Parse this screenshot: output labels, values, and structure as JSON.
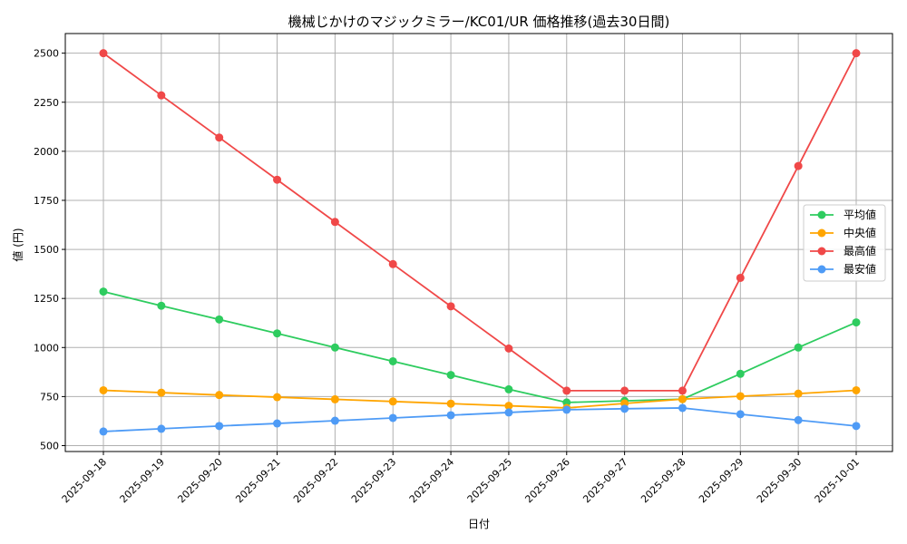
{
  "chart_data": {
    "type": "line",
    "title": "機械じかけのマジックミラー/KC01/UR 価格推移(過去30日間)",
    "xlabel": "日付",
    "ylabel": "値 (円)",
    "categories": [
      "2025-09-18",
      "2025-09-19",
      "2025-09-20",
      "2025-09-21",
      "2025-09-22",
      "2025-09-23",
      "2025-09-24",
      "2025-09-25",
      "2025-09-26",
      "2025-09-27",
      "2025-09-28",
      "2025-09-29",
      "2025-09-30",
      "2025-10-01"
    ],
    "ylim": [
      470,
      2600
    ],
    "yticks": [
      500,
      750,
      1000,
      1250,
      1500,
      1750,
      2000,
      2250,
      2500
    ],
    "grid": true,
    "legend_position": "right",
    "series": [
      {
        "name": "平均値",
        "color": "#2ecc5f",
        "values": [
          1285,
          1213,
          1143,
          1072,
          1000,
          930,
          860,
          787,
          720,
          728,
          737,
          866,
          1000,
          1128
        ]
      },
      {
        "name": "中央値",
        "color": "#ffa500",
        "values": [
          782,
          770,
          758,
          747,
          736,
          725,
          714,
          703,
          692,
          715,
          737,
          752,
          765,
          782
        ]
      },
      {
        "name": "最高値",
        "color": "#f04848",
        "values": [
          2500,
          2285,
          2070,
          1855,
          1640,
          1425,
          1210,
          995,
          780,
          780,
          780,
          1355,
          1925,
          2500
        ]
      },
      {
        "name": "最安値",
        "color": "#4e9bf6",
        "values": [
          572,
          586,
          600,
          613,
          627,
          641,
          655,
          669,
          683,
          688,
          692,
          660,
          630,
          600
        ]
      }
    ]
  }
}
